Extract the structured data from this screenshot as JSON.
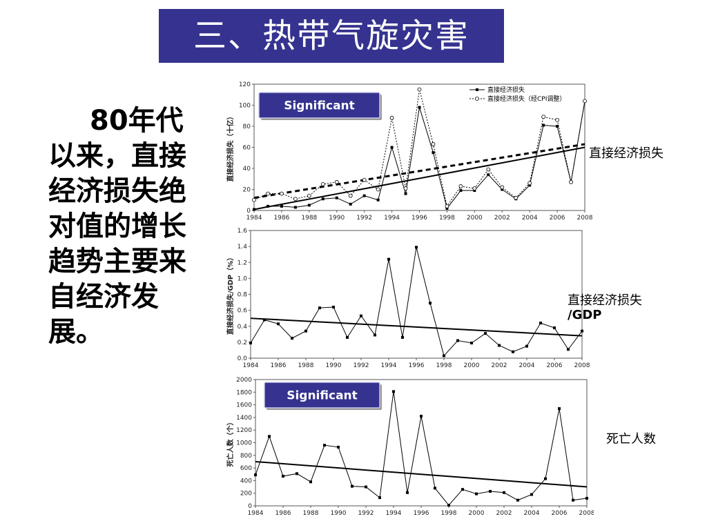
{
  "slide": {
    "title": "三、热带气旋灾害",
    "body_text": "80年代以来，直接经济损失绝对值的增长趋势主要来自经济发展。"
  },
  "labels": {
    "loss_side": "直接经济损失",
    "gdp_side_1": "直接经济损失",
    "gdp_side_2": "/GDP",
    "deaths_side": "死亡人数",
    "significant": "Significant"
  },
  "colors": {
    "title_bg": "#35338f",
    "badge_bg": "#35338f"
  },
  "chart_data": [
    {
      "id": "loss",
      "type": "line",
      "ylabel": "直接经济损失（十亿）",
      "x": [
        1984,
        1985,
        1986,
        1987,
        1988,
        1989,
        1990,
        1991,
        1992,
        1993,
        1994,
        1995,
        1996,
        1997,
        1998,
        1999,
        2000,
        2001,
        2002,
        2003,
        2004,
        2005,
        2006,
        2007,
        2008
      ],
      "series": [
        {
          "name": "直接经济损失",
          "values": [
            1,
            4,
            4,
            3,
            5,
            11,
            12,
            6,
            14,
            10,
            60,
            16,
            98,
            55,
            2,
            19,
            19,
            34,
            20,
            11,
            24,
            81,
            80,
            27,
            104
          ]
        },
        {
          "name": "直接经济损失（经CPI调整）",
          "values": [
            10,
            16,
            16,
            11,
            14,
            25,
            27,
            14,
            29,
            20,
            88,
            21,
            115,
            63,
            4,
            23,
            21,
            39,
            22,
            12,
            26,
            89,
            86,
            27,
            104
          ]
        }
      ],
      "trend": {
        "solid": [
          1,
          60
        ],
        "dashed": [
          12,
          63
        ]
      },
      "ylim": [
        0,
        120
      ],
      "yticks": [
        0,
        20,
        40,
        60,
        80,
        100,
        120
      ],
      "xticks": [
        1984,
        1986,
        1988,
        1990,
        1992,
        1994,
        1996,
        1998,
        2000,
        2002,
        2004,
        2006,
        2008
      ],
      "annotation": "Significant"
    },
    {
      "id": "gdp",
      "type": "line",
      "ylabel": "直接经济损失/GDP（%）",
      "x": [
        1984,
        1985,
        1986,
        1987,
        1988,
        1989,
        1990,
        1991,
        1992,
        1993,
        1994,
        1995,
        1996,
        1997,
        1998,
        1999,
        2000,
        2001,
        2002,
        2003,
        2004,
        2005,
        2006,
        2007,
        2008
      ],
      "series": [
        {
          "name": "",
          "values": [
            0.19,
            0.48,
            0.43,
            0.25,
            0.34,
            0.63,
            0.64,
            0.26,
            0.53,
            0.29,
            1.24,
            0.26,
            1.39,
            0.69,
            0.03,
            0.22,
            0.19,
            0.31,
            0.16,
            0.08,
            0.15,
            0.44,
            0.38,
            0.11,
            0.34
          ]
        }
      ],
      "trend": {
        "solid": [
          0.5,
          0.28
        ]
      },
      "ylim": [
        0,
        1.6
      ],
      "yticks": [
        0.0,
        0.2,
        0.4,
        0.6,
        0.8,
        1.0,
        1.2,
        1.4,
        1.6
      ],
      "xticks": [
        1984,
        1986,
        1988,
        1990,
        1992,
        1994,
        1996,
        1998,
        2000,
        2002,
        2004,
        2006,
        2008
      ]
    },
    {
      "id": "deaths",
      "type": "line",
      "ylabel": "死亡人数（个）",
      "x": [
        1984,
        1985,
        1986,
        1987,
        1988,
        1989,
        1990,
        1991,
        1992,
        1993,
        1994,
        1995,
        1996,
        1997,
        1998,
        1999,
        2000,
        2001,
        2002,
        2003,
        2004,
        2005,
        2006,
        2007,
        2008
      ],
      "series": [
        {
          "name": "",
          "values": [
            490,
            1100,
            470,
            510,
            380,
            960,
            930,
            310,
            300,
            130,
            1810,
            210,
            1420,
            280,
            10,
            260,
            190,
            230,
            210,
            90,
            180,
            430,
            1540,
            90,
            120
          ]
        }
      ],
      "trend": {
        "solid": [
          700,
          300
        ]
      },
      "ylim": [
        0,
        2000
      ],
      "yticks": [
        0,
        200,
        400,
        600,
        800,
        1000,
        1200,
        1400,
        1600,
        1800,
        2000
      ],
      "xticks": [
        1984,
        1986,
        1988,
        1990,
        1992,
        1994,
        1996,
        1998,
        2000,
        2002,
        2004,
        2006,
        2008
      ],
      "annotation": "Significant"
    }
  ]
}
